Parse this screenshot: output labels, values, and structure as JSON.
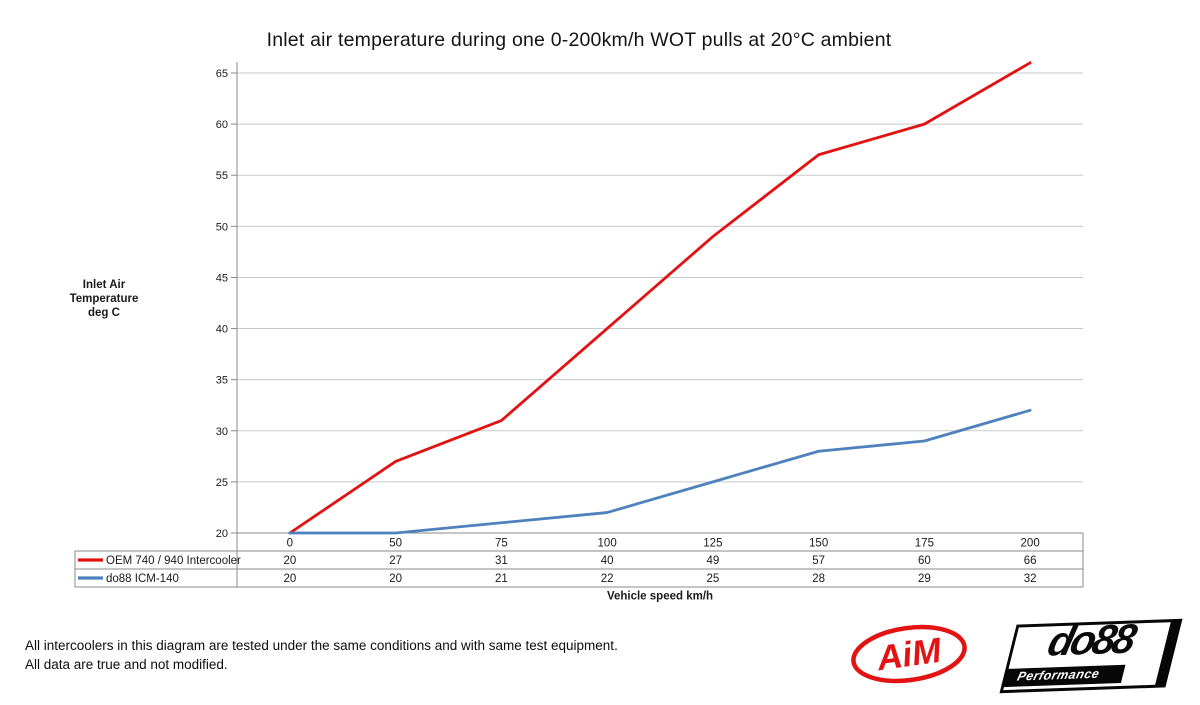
{
  "chart_data": {
    "type": "line",
    "title": "Inlet air temperature during one 0-200km/h WOT pulls at 20°C ambient",
    "categories": [
      "0",
      "50",
      "75",
      "100",
      "125",
      "150",
      "175",
      "200"
    ],
    "series": [
      {
        "name": "OEM 740 / 940 Intercooler",
        "color": "#e31212",
        "values": [
          20,
          27,
          31,
          40,
          49,
          57,
          60,
          66
        ]
      },
      {
        "name": "do88 ICM-140",
        "color": "#4f81bd",
        "values": [
          20,
          20,
          21,
          22,
          25,
          28,
          29,
          32
        ]
      }
    ],
    "xlabel": "Vehicle speed km/h",
    "ylabel": "Inlet Air\nTemperature\ndeg C",
    "ylim": [
      20,
      65
    ],
    "ytick_step": 5,
    "grid": true,
    "legend_position": "data-table-left",
    "data_table_shown": true
  },
  "notes": {
    "line1": "All intercoolers in this diagram are tested under the same conditions and with same test equipment.",
    "line2": "All data are true and not modified."
  },
  "logos": {
    "aim_text": "AiM",
    "do88_text": "do88",
    "do88_sub": "Performance"
  },
  "colors": {
    "grid": "#c9c9c9",
    "axis": "#8a8a8a",
    "table_border": "#8a8a8a",
    "text": "#1a1a1a",
    "aim_red": "#e31313",
    "logo_black": "#070707"
  }
}
